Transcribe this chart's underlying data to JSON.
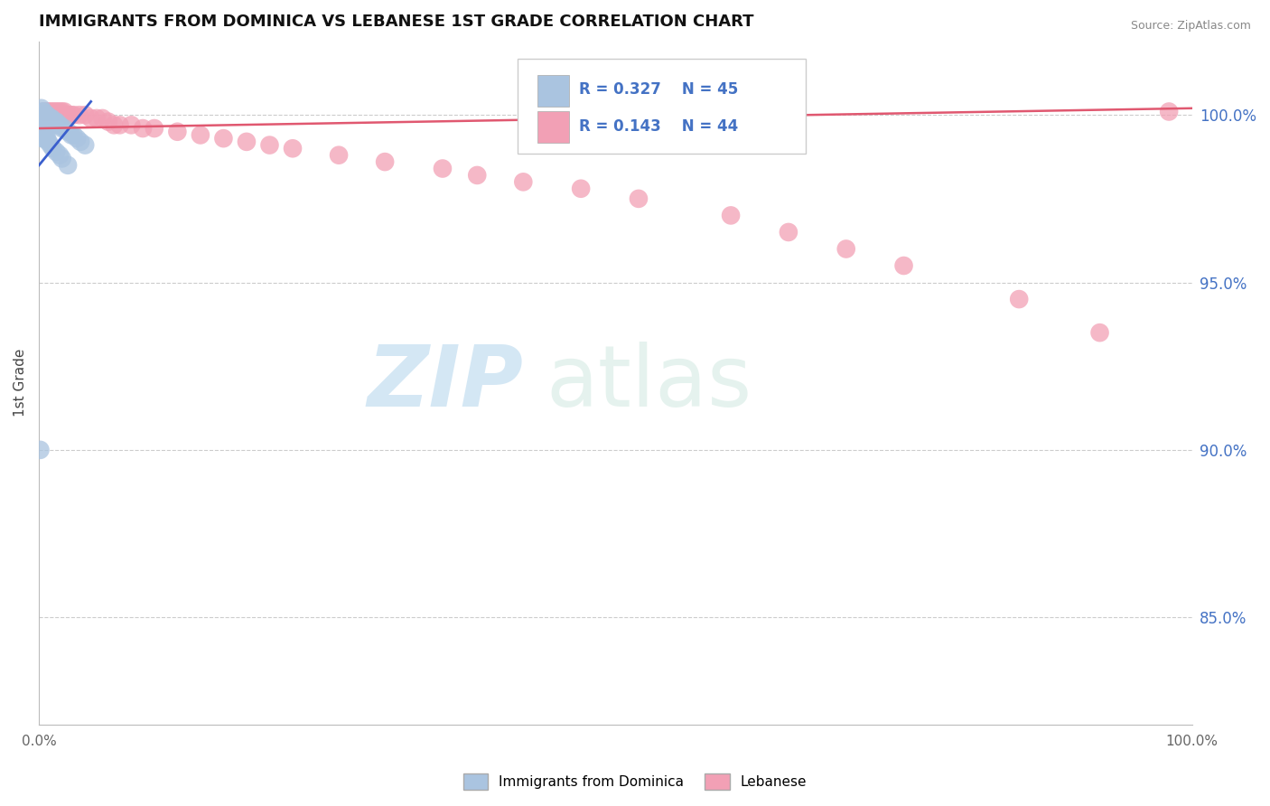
{
  "title": "IMMIGRANTS FROM DOMINICA VS LEBANESE 1ST GRADE CORRELATION CHART",
  "source": "Source: ZipAtlas.com",
  "ylabel": "1st Grade",
  "y_ticks": [
    0.85,
    0.9,
    0.95,
    1.0
  ],
  "y_tick_labels": [
    "85.0%",
    "90.0%",
    "95.0%",
    "100.0%"
  ],
  "xlim": [
    0.0,
    1.0
  ],
  "ylim": [
    0.818,
    1.022
  ],
  "blue_R": 0.327,
  "blue_N": 45,
  "pink_R": 0.143,
  "pink_N": 44,
  "blue_color": "#aac4e0",
  "pink_color": "#f2a0b5",
  "blue_line_color": "#3a5fcd",
  "pink_line_color": "#e05870",
  "watermark_zip": "ZIP",
  "watermark_atlas": "atlas",
  "blue_x": [
    0.002,
    0.003,
    0.004,
    0.005,
    0.005,
    0.006,
    0.007,
    0.008,
    0.009,
    0.01,
    0.011,
    0.012,
    0.013,
    0.014,
    0.015,
    0.016,
    0.017,
    0.018,
    0.02,
    0.022,
    0.025,
    0.028,
    0.03,
    0.033,
    0.036,
    0.04,
    0.002,
    0.003,
    0.004,
    0.005,
    0.006,
    0.007,
    0.008,
    0.01,
    0.012,
    0.015,
    0.018,
    0.02,
    0.025,
    0.002,
    0.003,
    0.004,
    0.002,
    0.003,
    0.001
  ],
  "blue_y": [
    1.002,
    1.001,
    1.001,
    1.0,
    1.0,
    1.0,
    1.0,
    0.999,
    0.999,
    0.999,
    0.999,
    0.998,
    0.998,
    0.998,
    0.998,
    0.997,
    0.997,
    0.997,
    0.996,
    0.996,
    0.995,
    0.994,
    0.994,
    0.993,
    0.992,
    0.991,
    0.998,
    0.997,
    0.996,
    0.995,
    0.994,
    0.993,
    0.992,
    0.991,
    0.99,
    0.989,
    0.988,
    0.987,
    0.985,
    0.995,
    0.994,
    0.993,
    0.996,
    0.993,
    0.9
  ],
  "pink_x": [
    0.004,
    0.006,
    0.008,
    0.01,
    0.012,
    0.014,
    0.016,
    0.018,
    0.02,
    0.022,
    0.025,
    0.028,
    0.03,
    0.035,
    0.04,
    0.045,
    0.05,
    0.055,
    0.06,
    0.065,
    0.07,
    0.08,
    0.09,
    0.1,
    0.12,
    0.14,
    0.16,
    0.18,
    0.2,
    0.22,
    0.26,
    0.3,
    0.35,
    0.38,
    0.42,
    0.47,
    0.52,
    0.6,
    0.65,
    0.7,
    0.75,
    0.85,
    0.92,
    0.98
  ],
  "pink_y": [
    1.001,
    1.001,
    1.001,
    1.001,
    1.001,
    1.001,
    1.001,
    1.001,
    1.001,
    1.001,
    1.0,
    1.0,
    1.0,
    1.0,
    1.0,
    0.999,
    0.999,
    0.999,
    0.998,
    0.997,
    0.997,
    0.997,
    0.996,
    0.996,
    0.995,
    0.994,
    0.993,
    0.992,
    0.991,
    0.99,
    0.988,
    0.986,
    0.984,
    0.982,
    0.98,
    0.978,
    0.975,
    0.97,
    0.965,
    0.96,
    0.955,
    0.945,
    0.935,
    1.001
  ],
  "blue_line": {
    "x0": 0.0,
    "x1": 0.045,
    "y0": 0.985,
    "y1": 1.004
  },
  "pink_line": {
    "x0": 0.0,
    "x1": 1.0,
    "y0": 0.996,
    "y1": 1.002
  }
}
